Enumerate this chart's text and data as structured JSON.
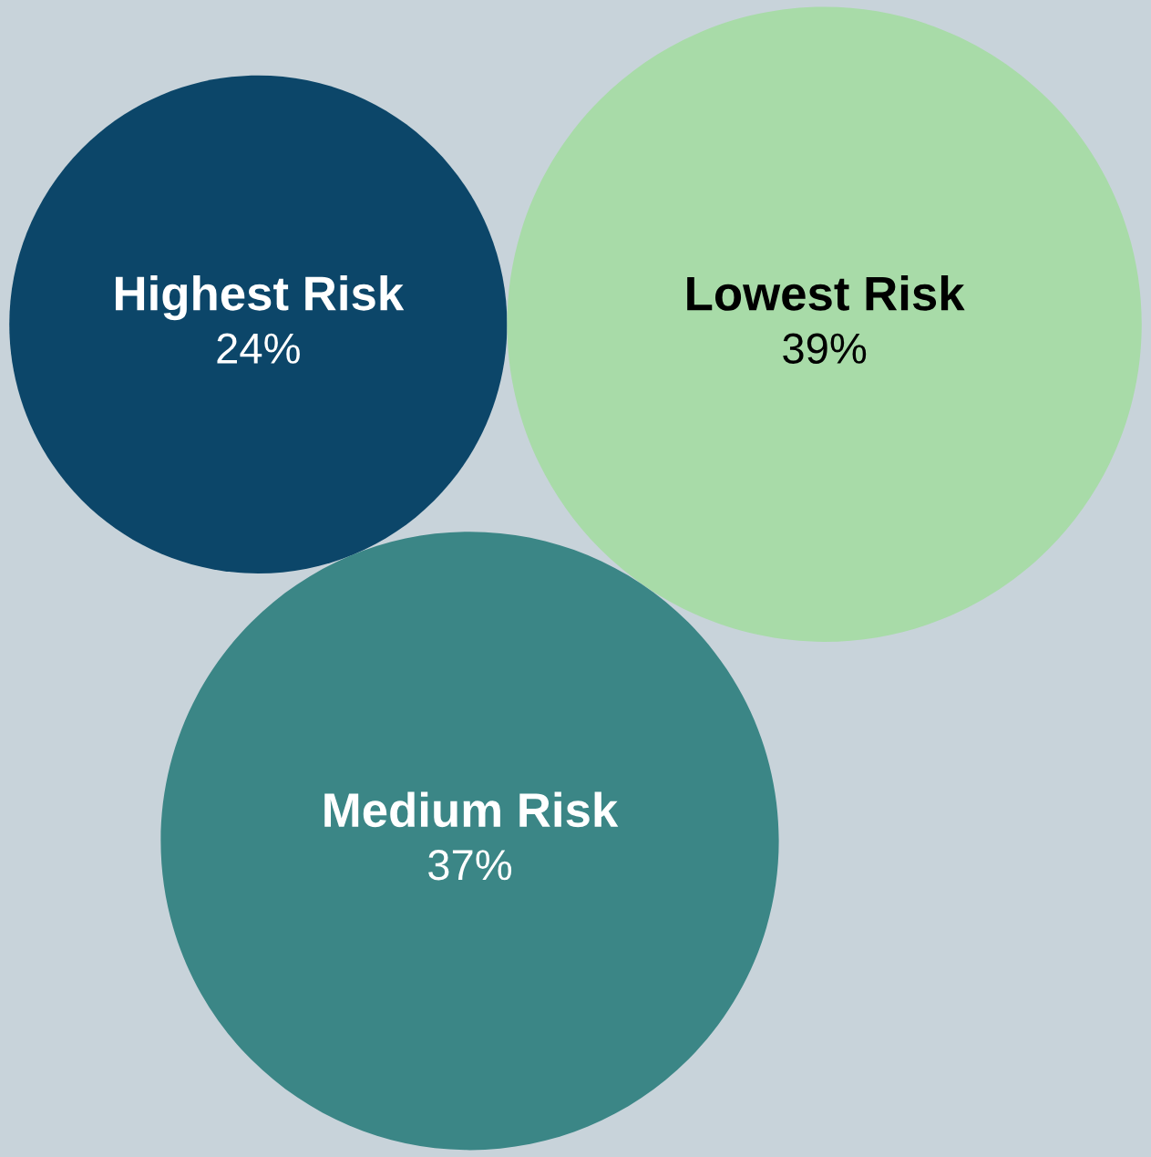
{
  "chart_data": {
    "type": "other",
    "categories": [
      "Highest Risk",
      "Lowest Risk",
      "Medium Risk"
    ],
    "values": [
      24,
      39,
      37
    ],
    "colors": [
      "#0c4669",
      "#a8dba8",
      "#3b8686"
    ],
    "value_labels": [
      "24%",
      "39%",
      "37%"
    ]
  }
}
